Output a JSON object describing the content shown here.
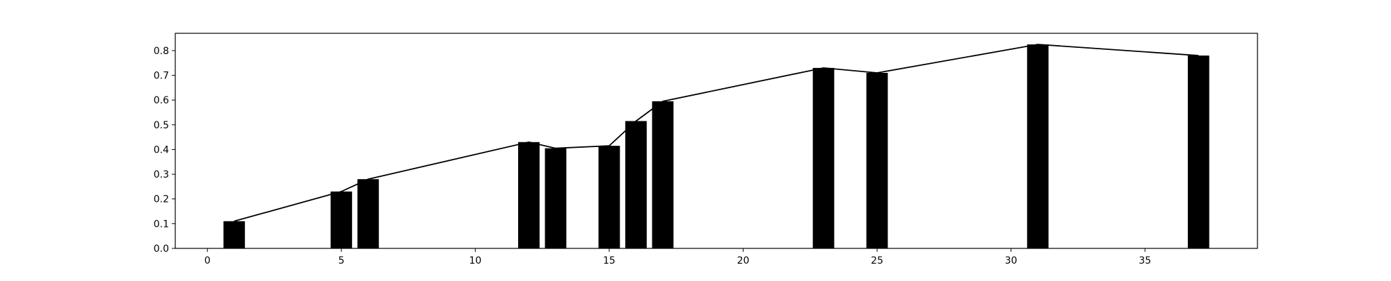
{
  "chart_data": {
    "type": "bar",
    "title": "",
    "xlabel": "",
    "ylabel": "",
    "xlim": [
      -1.2,
      39.2
    ],
    "ylim": [
      0,
      0.87
    ],
    "grid": false,
    "x_ticks": [
      0,
      5,
      10,
      15,
      20,
      25,
      30,
      35
    ],
    "y_ticks": [
      0.0,
      0.1,
      0.2,
      0.3,
      0.4,
      0.5,
      0.6,
      0.7,
      0.8
    ],
    "bar_color": "#000000",
    "line_color": "#000000",
    "series": [
      {
        "type": "bar",
        "x": [
          1,
          5,
          6,
          12,
          13,
          15,
          16,
          17,
          23,
          25,
          31,
          37
        ],
        "values": [
          0.11,
          0.23,
          0.28,
          0.43,
          0.405,
          0.415,
          0.515,
          0.595,
          0.73,
          0.71,
          0.825,
          0.78
        ]
      },
      {
        "type": "line",
        "x": [
          1,
          5,
          6,
          12,
          13,
          15,
          16,
          17,
          23,
          25,
          31,
          37
        ],
        "values": [
          0.11,
          0.23,
          0.28,
          0.43,
          0.405,
          0.415,
          0.515,
          0.595,
          0.73,
          0.71,
          0.825,
          0.78
        ]
      }
    ]
  }
}
